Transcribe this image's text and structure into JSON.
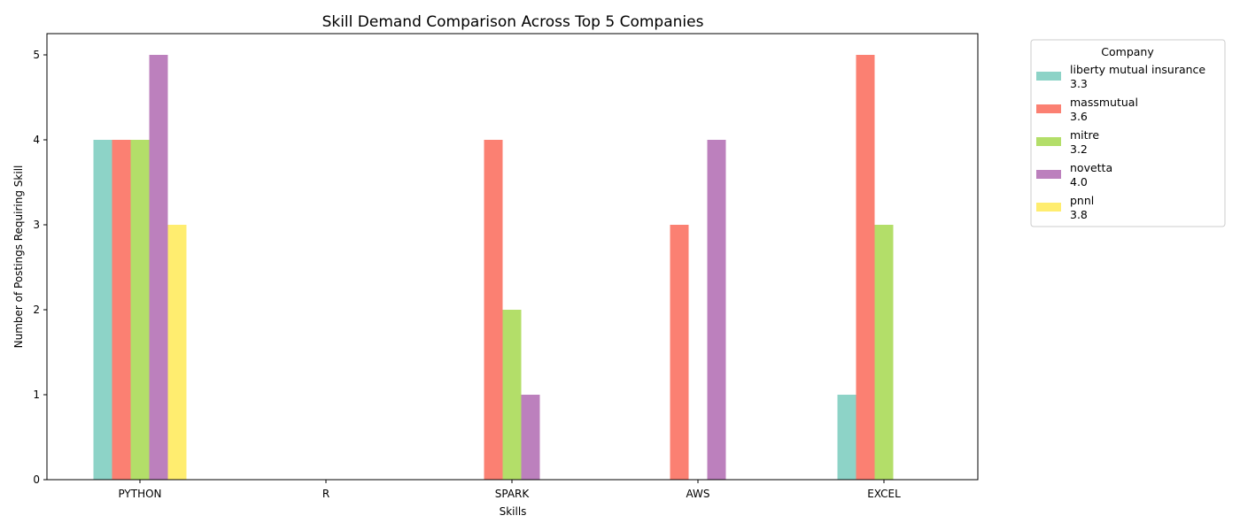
{
  "chart_data": {
    "type": "bar",
    "title": "Skill Demand Comparison Across Top 5 Companies",
    "xlabel": "Skills",
    "ylabel": "Number of Postings Requiring Skill",
    "categories": [
      "PYTHON",
      "R",
      "SPARK",
      "AWS",
      "EXCEL"
    ],
    "ylim": [
      0,
      5.25
    ],
    "yticks": [
      0,
      1,
      2,
      3,
      4,
      5
    ],
    "grid": false,
    "legend": {
      "title": "Company",
      "placement": "outside-top-right"
    },
    "series": [
      {
        "name": "liberty mutual insurance",
        "rating": "3.3",
        "color": "#8dd3c7",
        "values": [
          4,
          0,
          0,
          0,
          1
        ]
      },
      {
        "name": "massmutual",
        "rating": "3.6",
        "color": "#fb8072",
        "values": [
          4,
          0,
          4,
          3,
          5
        ]
      },
      {
        "name": "mitre",
        "rating": "3.2",
        "color": "#b3de69",
        "values": [
          4,
          0,
          2,
          0,
          3
        ]
      },
      {
        "name": "novetta",
        "rating": "4.0",
        "color": "#bc80bd",
        "values": [
          5,
          0,
          1,
          4,
          0
        ]
      },
      {
        "name": "pnnl",
        "rating": "3.8",
        "color": "#ffed6f",
        "values": [
          3,
          0,
          0,
          0,
          0
        ]
      }
    ]
  }
}
